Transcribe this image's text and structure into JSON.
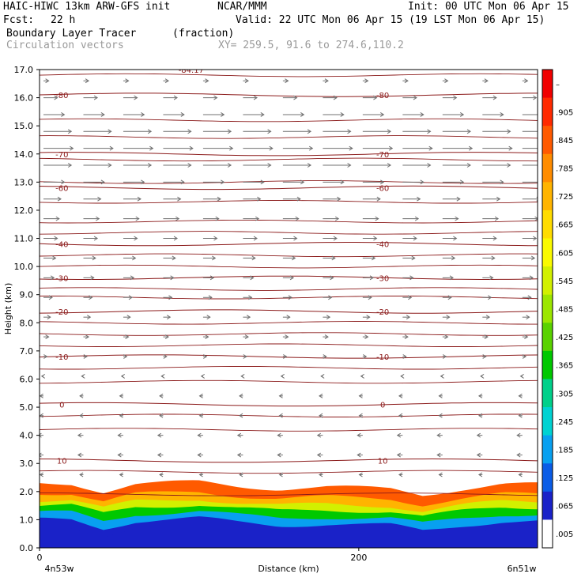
{
  "header": {
    "title": "HAIC-HIWC 13km ARW-GFS init",
    "org": "NCAR/MMM",
    "init": "Init: 00 UTC Mon 06 Apr 15",
    "fcst_label": "Fcst:",
    "fcst_value": "22 h",
    "valid": "Valid: 22 UTC Mon 06 Apr 15 (19 LST Mon 06 Apr 15)",
    "field": "Boundary Layer Tracer",
    "units": "(fraction)",
    "vectors": "Circulation vectors",
    "xy": "XY= 259.5, 91.6 to 274.6,110.2"
  },
  "chart_data": {
    "type": "heatmap",
    "title": "Boundary Layer Tracer",
    "xlabel": "Distance (km)",
    "ylabel": "Height (km)",
    "xlim": [
      0,
      312
    ],
    "ylim": [
      0,
      17
    ],
    "x_ticks": [
      0,
      200
    ],
    "x_end_labels": [
      "4n53w",
      "6n51w"
    ],
    "y_ticks": [
      "0.0",
      "1.0",
      "2.0",
      "3.0",
      "4.0",
      "5.0",
      "6.0",
      "7.0",
      "8.0",
      "9.0",
      "10.0",
      "11.0",
      "12.0",
      "13.0",
      "14.0",
      "15.0",
      "16.0",
      "17.0"
    ],
    "colorbar_labels": [
      "–",
      ".905",
      ".845",
      ".785",
      ".725",
      ".665",
      ".605",
      ".545",
      ".485",
      ".425",
      ".365",
      ".305",
      ".245",
      ".185",
      ".125",
      ".065",
      ".005"
    ],
    "colorbar_colors": [
      "#ffffff",
      "#1a22c8",
      "#0a5ce6",
      "#08a0f0",
      "#00d2d2",
      "#00d08a",
      "#00c800",
      "#5ad200",
      "#9ce600",
      "#d2f000",
      "#fafa00",
      "#ffdc00",
      "#ffb400",
      "#ff8c00",
      "#ff5a00",
      "#ff2a00",
      "#f00000"
    ],
    "temperature_contours": [
      {
        "value": -80,
        "height": 16.1
      },
      {
        "value": -70,
        "height": 14.0
      },
      {
        "value": -60,
        "height": 12.8
      },
      {
        "value": -40,
        "height": 10.8
      },
      {
        "value": -30,
        "height": 9.6
      },
      {
        "value": -20,
        "height": 8.4
      },
      {
        "value": -10,
        "height": 6.8
      },
      {
        "value": 0,
        "height": 5.1
      },
      {
        "value": 10,
        "height": 3.1
      }
    ],
    "extra_contour_heights": [
      16.8,
      15.2,
      14.6,
      13.8,
      13.0,
      12.3,
      11.6,
      11.2,
      10.4,
      10.0,
      9.2,
      8.9,
      8.0,
      7.6,
      7.2,
      6.4,
      5.9,
      4.7,
      4.2,
      2.7,
      1.9
    ],
    "contour_label_columns": [
      14,
      215
    ],
    "top_label": "-84.17",
    "tracer_top_profile": [
      [
        0,
        2.3
      ],
      [
        20,
        2.3
      ],
      [
        40,
        2.0
      ],
      [
        60,
        2.25
      ],
      [
        100,
        2.35
      ],
      [
        125,
        2.2
      ],
      [
        150,
        2.1
      ],
      [
        180,
        2.15
      ],
      [
        220,
        2.1
      ],
      [
        240,
        1.9
      ],
      [
        265,
        2.1
      ],
      [
        290,
        2.25
      ],
      [
        312,
        2.25
      ]
    ],
    "bands": [
      {
        "level": 0.125,
        "offset_km": 0.0
      },
      {
        "level": 0.245,
        "offset_km": 0.35
      },
      {
        "level": 0.425,
        "offset_km": 0.6
      },
      {
        "level": 0.605,
        "offset_km": 0.8
      },
      {
        "level": 0.785,
        "offset_km": 1.05
      },
      {
        "level": 0.905,
        "offset_km": 1.3
      },
      {
        "level": 0.95,
        "offset_km": 1.55
      }
    ],
    "vector_columns": [
      0,
      25,
      50,
      75,
      100,
      125,
      150,
      175,
      200,
      225,
      250,
      275,
      300
    ],
    "vector_rows": [
      {
        "h": 16.6,
        "u": 3
      },
      {
        "h": 16.0,
        "u": 8
      },
      {
        "h": 15.4,
        "u": 12
      },
      {
        "h": 14.8,
        "u": 16
      },
      {
        "h": 14.2,
        "u": 17
      },
      {
        "h": 13.6,
        "u": 16
      },
      {
        "h": 13.0,
        "u": 12
      },
      {
        "h": 12.4,
        "u": 10
      },
      {
        "h": 11.7,
        "u": 9
      },
      {
        "h": 11.0,
        "u": 8
      },
      {
        "h": 10.3,
        "u": 7
      },
      {
        "h": 9.6,
        "u": 6
      },
      {
        "h": 8.9,
        "u": 5
      },
      {
        "h": 8.2,
        "u": 4
      },
      {
        "h": 7.5,
        "u": 3
      },
      {
        "h": 6.8,
        "u": 2
      },
      {
        "h": 6.1,
        "u": -1
      },
      {
        "h": 5.4,
        "u": -2
      },
      {
        "h": 4.7,
        "u": -2
      },
      {
        "h": 4.0,
        "u": -3
      },
      {
        "h": 3.3,
        "u": -3
      },
      {
        "h": 2.6,
        "u": -2
      }
    ],
    "grid": false
  }
}
